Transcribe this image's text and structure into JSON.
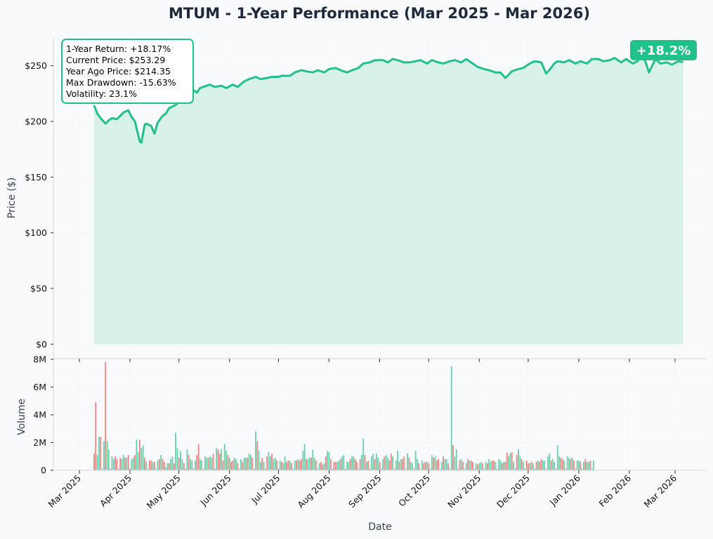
{
  "chart_data": [
    {
      "type": "line",
      "title": "MTUM - 1-Year Performance (Mar 2025 - Mar 2026)",
      "ylabel": "Price ($)",
      "xlabel": "",
      "ylim": [
        -13,
        275
      ],
      "yticks": [
        0,
        50,
        100,
        150,
        200,
        250
      ],
      "ytick_labels": [
        "$0",
        "$50",
        "$100",
        "$150",
        "$200",
        "$250"
      ],
      "grid": true,
      "fill": "area",
      "color": "#22c08a",
      "fill_color": "#d4f0e5",
      "series": [
        {
          "dates": [
            "2025-03-10",
            "2025-03-12",
            "2025-03-14",
            "2025-03-17",
            "2025-03-19",
            "2025-03-21",
            "2025-03-24",
            "2025-03-26",
            "2025-03-28",
            "2025-03-31",
            "2025-04-02",
            "2025-04-04",
            "2025-04-07",
            "2025-04-08",
            "2025-04-10",
            "2025-04-11",
            "2025-04-14",
            "2025-04-16",
            "2025-04-18",
            "2025-04-21",
            "2025-04-23",
            "2025-04-25",
            "2025-04-28",
            "2025-04-30",
            "2025-05-02",
            "2025-05-05",
            "2025-05-07",
            "2025-05-09",
            "2025-05-12",
            "2025-05-14",
            "2025-05-16",
            "2025-05-20",
            "2025-05-23",
            "2025-05-27",
            "2025-05-30",
            "2025-06-03",
            "2025-06-06",
            "2025-06-10",
            "2025-06-13",
            "2025-06-17",
            "2025-06-20",
            "2025-06-24",
            "2025-06-27",
            "2025-07-01",
            "2025-07-03",
            "2025-07-08",
            "2025-07-11",
            "2025-07-15",
            "2025-07-18",
            "2025-07-22",
            "2025-07-25",
            "2025-07-29",
            "2025-08-01",
            "2025-08-05",
            "2025-08-08",
            "2025-08-12",
            "2025-08-15",
            "2025-08-19",
            "2025-08-22",
            "2025-08-26",
            "2025-08-29",
            "2025-09-03",
            "2025-09-06",
            "2025-09-09",
            "2025-09-12",
            "2025-09-16",
            "2025-09-19",
            "2025-09-23",
            "2025-09-26",
            "2025-09-30",
            "2025-10-03",
            "2025-10-07",
            "2025-10-10",
            "2025-10-14",
            "2025-10-17",
            "2025-10-21",
            "2025-10-24",
            "2025-10-28",
            "2025-10-31",
            "2025-11-04",
            "2025-11-07",
            "2025-11-11",
            "2025-11-14",
            "2025-11-17",
            "2025-11-19",
            "2025-11-21",
            "2025-11-25",
            "2025-11-28",
            "2025-12-02",
            "2025-12-05",
            "2025-12-09",
            "2025-12-12",
            "2025-12-15",
            "2025-12-17",
            "2025-12-19",
            "2025-12-23",
            "2025-12-26",
            "2025-12-30",
            "2026-01-02",
            "2026-01-06",
            "2026-01-09",
            "2026-01-13",
            "2026-01-16",
            "2026-01-20",
            "2026-01-23",
            "2026-01-27",
            "2026-01-30",
            "2026-02-03",
            "2026-02-06",
            "2026-02-09",
            "2026-02-11",
            "2026-02-13",
            "2026-02-17",
            "2026-02-20",
            "2026-02-24",
            "2026-02-27",
            "2026-03-03",
            "2026-03-06"
          ],
          "values": [
            214.35,
            207,
            203,
            198,
            201,
            203,
            202,
            205,
            208,
            210,
            204,
            200,
            182,
            181,
            197,
            198,
            196,
            189,
            199,
            205,
            207,
            212,
            214,
            216,
            221,
            228,
            230,
            229,
            226,
            230,
            231,
            233,
            231,
            232,
            230,
            233,
            231,
            236,
            238,
            240,
            238,
            239,
            240,
            240,
            241,
            241,
            244,
            246,
            245,
            244,
            246,
            244,
            247,
            248,
            246,
            244,
            246,
            248,
            252,
            253,
            255,
            255,
            253,
            256,
            255,
            253,
            253,
            254,
            255,
            252,
            255,
            253,
            252,
            254,
            255,
            253,
            256,
            252,
            249,
            247,
            246,
            244,
            244,
            239,
            242,
            245,
            247,
            248,
            252,
            254,
            253,
            243,
            248,
            252,
            254,
            253,
            255,
            252,
            254,
            252,
            256,
            256,
            254,
            255,
            257,
            253,
            256,
            252,
            254,
            260,
            253,
            244,
            256,
            252,
            253,
            251,
            254,
            253.29
          ]
        }
      ],
      "annotation": {
        "lines": [
          "1-Year Return: +18.17%",
          "Current Price: $253.29",
          "Year Ago Price: $214.35",
          "Max Drawdown: -15.63%",
          "Volatility: 23.1%"
        ],
        "placement": "top-left",
        "border_color": "#22c08a"
      },
      "badge": {
        "text": "+18.2%",
        "placement": "top-right",
        "color": "#22c08a"
      }
    },
    {
      "type": "bar",
      "ylabel": "Volume",
      "xlabel": "Date",
      "ylim": [
        0,
        8000000
      ],
      "yticks": [
        0,
        2000000,
        4000000,
        6000000,
        8000000
      ],
      "ytick_labels": [
        "0",
        "2M",
        "4M",
        "6M",
        "8M"
      ],
      "xticks": [
        "2025-03-01",
        "2025-04-01",
        "2025-05-01",
        "2025-06-01",
        "2025-07-01",
        "2025-08-01",
        "2025-09-01",
        "2025-10-01",
        "2025-11-01",
        "2025-12-01",
        "2026-01-01",
        "2026-02-01",
        "2026-03-01"
      ],
      "xtick_labels": [
        "Mar 2025",
        "Apr 2025",
        "May 2025",
        "Jun 2025",
        "Jul 2025",
        "Aug 2025",
        "Sep 2025",
        "Oct 2025",
        "Nov 2025",
        "Dec 2025",
        "Jan 2026",
        "Feb 2026",
        "Mar 2026"
      ],
      "grid": true,
      "up_color": "#6fd3b0",
      "down_color": "#ec8a8a",
      "series": [
        {
          "name": "",
          "start_date": "2025-03-10",
          "values_m": [
            1.2,
            4.9,
            1.1,
            2.4,
            2.4,
            0.1,
            2.1,
            7.8,
            2.1,
            1.5,
            0.1,
            1,
            0.8,
            1,
            0.8,
            0.1,
            0.9,
            0.8,
            1.1,
            0.9,
            0.9,
            1.1,
            0.1,
            0.8,
            0.9,
            1.1,
            2.2,
            1.3,
            2.2,
            1.6,
            1.8,
            0.9,
            0.6,
            0.1,
            0.7,
            0.7,
            0.6,
            0.6,
            0.1,
            0.7,
            0.8,
            1.1,
            0.8,
            0.6,
            0.2,
            0.5,
            0.5,
            0.8,
            1,
            0.5,
            2.7,
            1.6,
            0.9,
            1.4,
            0.8,
            0.5,
            0.1,
            1.5,
            1.1,
            0.8,
            0.7,
            0.1,
            0.7,
            1.1,
            1.9,
            0.8,
            0.7,
            0.1,
            1,
            0.9,
            0.9,
            1,
            0.9,
            1.2,
            0.1,
            1.6,
            1.5,
            1.2,
            1.5,
            0.7,
            1.9,
            1.4,
            1.1,
            0.9,
            0.6,
            0.7,
            0.9,
            0.8,
            0.5,
            0.1,
            0.8,
            0.6,
            0.9,
            0.9,
            0.9,
            1.2,
            1.1,
            0.9,
            0.1,
            2.8,
            2.1,
            1.4,
            0.6,
            0.9,
            0.6,
            0.1,
            1,
            1.3,
            1,
            1.2,
            0.8,
            0.9,
            0.7,
            0.1,
            0.7,
            0.6,
            0.5,
            1,
            0.6,
            0.7,
            0.7,
            0.5,
            0.1,
            0.7,
            0.7,
            0.8,
            0.7,
            0.8,
            1.4,
            1.9,
            0.8,
            0.8,
            0.9,
            0.9,
            1.5,
            0.9,
            0.7,
            0.1,
            0.5,
            0.6,
            0.4,
            0.5,
            1,
            1.4,
            1.3,
            0.8,
            0.1,
            0.6,
            0.6,
            0.6,
            0.7,
            0.8,
            1,
            1.1,
            0.1,
            0.6,
            0.6,
            0.8,
            1,
            1,
            0.8,
            0.6,
            0.1,
            0.8,
            1.1,
            2.3,
            1.1,
            0.6,
            0.7,
            0.1,
            1,
            1.2,
            0.8,
            1.2,
            0.9,
            0.6,
            0.1,
            0.8,
            1,
            1.1,
            0.9,
            0.7,
            1.2,
            1,
            0.1,
            0.7,
            1.4,
            0.6,
            0.8,
            0.8,
            1,
            0.1,
            1.2,
            0.9,
            0.6,
            0.5,
            0.1,
            1.4,
            0.8,
            0.5,
            0.1,
            0.7,
            0.5,
            0.6,
            0.6,
            0.5,
            0.1,
            1.1,
            0.9,
            1,
            0.7,
            0.8,
            0.1,
            0.6,
            1,
            0.8,
            0.8,
            0.5,
            0.1,
            7.5,
            1.8,
            1,
            1.5,
            0.1,
            0.7,
            0.8,
            0.6,
            0.1,
            0.5,
            0.8,
            0.7,
            0.7,
            0.6,
            0.1,
            0.5,
            0.4,
            0.5,
            0.6,
            0.5,
            0.1,
            0.6,
            0.5,
            0.8,
            0.6,
            0.7,
            0.7,
            0.6,
            0.1,
            0.8,
            0.7,
            0.5,
            0.6,
            0.6,
            1.3,
            1,
            1.2,
            1.3,
            0.6,
            0.1,
            1.1,
            1.5,
            1,
            0.8,
            0.6,
            0.1,
            0.7,
            0.5,
            0.5,
            0.6,
            0.5,
            0.1,
            0.6,
            0.7,
            0.6,
            0.8,
            0.7,
            0.7,
            0.1,
            1,
            1.2,
            0.7,
            0.8,
            0.6,
            0.1,
            1.8,
            1,
            0.9,
            0.8,
            0.7,
            0.1,
            1,
            0.9,
            0.8,
            0.9,
            0.7,
            0.1,
            0.7,
            0.7,
            0.6,
            0.1,
            0.6,
            0.8,
            0.6,
            0.6,
            0.7,
            0.1,
            0.7
          ]
        }
      ]
    }
  ]
}
